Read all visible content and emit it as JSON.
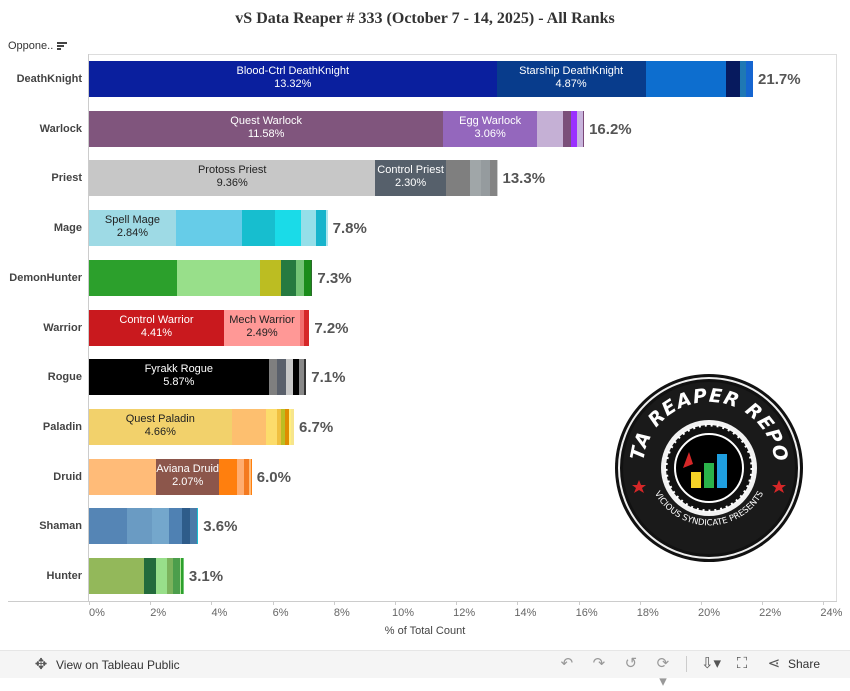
{
  "header": {
    "title": "vS Data Reaper # 333 (October 7 - 14, 2025) - All Ranks",
    "column_header": "Oppone..",
    "sort_icon": "sort-descending-icon"
  },
  "chart_data": {
    "type": "bar",
    "orientation": "horizontal-stacked",
    "title": "vS Data Reaper # 333 (October 7 - 14, 2025) - All Ranks",
    "xlabel": "% of Total Count",
    "ylabel": "Opponent Class",
    "xlim": [
      0,
      24
    ],
    "x_ticks": [
      "0%",
      "2%",
      "4%",
      "6%",
      "8%",
      "10%",
      "12%",
      "14%",
      "16%",
      "18%",
      "20%",
      "22%",
      "24%"
    ],
    "grid": false,
    "categories": [
      "DeathKnight",
      "Warlock",
      "Priest",
      "Mage",
      "DemonHunter",
      "Warrior",
      "Rogue",
      "Paladin",
      "Druid",
      "Shaman",
      "Hunter"
    ],
    "totals": [
      21.7,
      16.2,
      13.3,
      7.8,
      7.3,
      7.2,
      7.1,
      6.7,
      6.0,
      3.6,
      3.1
    ],
    "total_labels": [
      "21.7%",
      "16.2%",
      "13.3%",
      "7.8%",
      "7.3%",
      "7.2%",
      "7.1%",
      "6.7%",
      "6.0%",
      "3.6%",
      "3.1%"
    ],
    "rows": [
      {
        "class": "DeathKnight",
        "total": "21.7%",
        "segments": [
          {
            "name": "Blood-Ctrl DeathKnight",
            "value": 13.32,
            "label": "13.32%",
            "color": "#0a1f9e",
            "text": "#ffffff"
          },
          {
            "name": "Starship DeathKnight",
            "value": 4.87,
            "label": "4.87%",
            "color": "#083c8c",
            "text": "#ffffff"
          },
          {
            "name": "",
            "value": 2.62,
            "color": "#0d6ecf"
          },
          {
            "name": "",
            "value": 0.45,
            "color": "#071a5e"
          },
          {
            "name": "",
            "value": 0.22,
            "color": "#1f78b4"
          },
          {
            "name": "",
            "value": 0.22,
            "color": "#1565d0"
          }
        ]
      },
      {
        "class": "Warlock",
        "total": "16.2%",
        "segments": [
          {
            "name": "Quest Warlock",
            "value": 11.58,
            "label": "11.58%",
            "color": "#80557d",
            "text": "#ffffff"
          },
          {
            "name": "Egg Warlock",
            "value": 3.06,
            "label": "3.06%",
            "color": "#9467bd",
            "text": "#ffffff"
          },
          {
            "name": "",
            "value": 0.85,
            "color": "#c5b0d5"
          },
          {
            "name": "",
            "value": 0.25,
            "color": "#7b4f7a"
          },
          {
            "name": "",
            "value": 0.22,
            "color": "#9b30ff"
          },
          {
            "name": "",
            "value": 0.17,
            "color": "#c8b4dc"
          },
          {
            "name": "",
            "value": 0.05,
            "color": "#7a4878"
          }
        ]
      },
      {
        "class": "Priest",
        "total": "13.3%",
        "segments": [
          {
            "name": "Protoss Priest",
            "value": 9.36,
            "label": "9.36%",
            "color": "#c7c7c7",
            "text": "#222222"
          },
          {
            "name": "Control Priest",
            "value": 2.3,
            "label": "2.30%",
            "color": "#56606b",
            "text": "#ffffff"
          },
          {
            "name": "",
            "value": 0.79,
            "color": "#7f7f7f"
          },
          {
            "name": "",
            "value": 0.35,
            "color": "#a0a6a8"
          },
          {
            "name": "",
            "value": 0.32,
            "color": "#959b9e"
          },
          {
            "name": "",
            "value": 0.2,
            "color": "#848484"
          },
          {
            "name": "",
            "value": 0.03,
            "color": "#cccccc"
          }
        ]
      },
      {
        "class": "Mage",
        "total": "7.8%",
        "segments": [
          {
            "name": "Spell Mage",
            "value": 2.84,
            "label": "2.84%",
            "color": "#9edae5",
            "text": "#222222"
          },
          {
            "name": "",
            "value": 2.15,
            "color": "#66cce8"
          },
          {
            "name": "",
            "value": 1.1,
            "color": "#17becf"
          },
          {
            "name": "",
            "value": 0.85,
            "color": "#1adbe8"
          },
          {
            "name": "",
            "value": 0.48,
            "color": "#95dfe9"
          },
          {
            "name": "",
            "value": 0.33,
            "color": "#17b4cc"
          },
          {
            "name": "",
            "value": 0.05,
            "color": "#aee6ee"
          }
        ]
      },
      {
        "class": "DemonHunter",
        "total": "7.3%",
        "segments": [
          {
            "name": "",
            "value": 2.88,
            "color": "#2ca02c"
          },
          {
            "name": "",
            "value": 2.7,
            "color": "#98df8a"
          },
          {
            "name": "",
            "value": 0.68,
            "color": "#bcbd22"
          },
          {
            "name": "",
            "value": 0.52,
            "color": "#267a40"
          },
          {
            "name": "",
            "value": 0.26,
            "color": "#74c476"
          },
          {
            "name": "",
            "value": 0.2,
            "color": "#1a8c1a"
          },
          {
            "name": "",
            "value": 0.06,
            "color": "#2b6b2b"
          }
        ]
      },
      {
        "class": "Warrior",
        "total": "7.2%",
        "segments": [
          {
            "name": "Control Warrior",
            "value": 4.41,
            "label": "4.41%",
            "color": "#c9191e",
            "text": "#ffffff"
          },
          {
            "name": "Mech Warrior",
            "value": 2.49,
            "label": "2.49%",
            "color": "#ff9896",
            "text": "#222222"
          },
          {
            "name": "",
            "value": 0.14,
            "color": "#f26d6d"
          },
          {
            "name": "",
            "value": 0.16,
            "color": "#d62728"
          }
        ]
      },
      {
        "class": "Rogue",
        "total": "7.1%",
        "segments": [
          {
            "name": "Fyrakk Rogue",
            "value": 5.87,
            "label": "5.87%",
            "color": "#000000",
            "text": "#ffffff"
          },
          {
            "name": "",
            "value": 0.28,
            "color": "#7f7f7f"
          },
          {
            "name": "",
            "value": 0.3,
            "color": "#5a606b"
          },
          {
            "name": "",
            "value": 0.22,
            "color": "#c7c7c7"
          },
          {
            "name": "",
            "value": 0.2,
            "color": "#000000"
          },
          {
            "name": "",
            "value": 0.15,
            "color": "#888888"
          },
          {
            "name": "",
            "value": 0.08,
            "color": "#333333"
          }
        ]
      },
      {
        "class": "Paladin",
        "total": "6.7%",
        "segments": [
          {
            "name": "Quest Paladin",
            "value": 4.66,
            "label": "4.66%",
            "color": "#f2d16b",
            "text": "#222222"
          },
          {
            "name": "",
            "value": 1.13,
            "color": "#fdbf6f"
          },
          {
            "name": "",
            "value": 0.36,
            "color": "#fcdc6b"
          },
          {
            "name": "",
            "value": 0.13,
            "color": "#f0c040"
          },
          {
            "name": "",
            "value": 0.13,
            "color": "#bcbd22"
          },
          {
            "name": "",
            "value": 0.13,
            "color": "#e08c00"
          },
          {
            "name": "",
            "value": 0.06,
            "color": "#ffef80"
          },
          {
            "name": "",
            "value": 0.1,
            "color": "#f7e58c"
          }
        ]
      },
      {
        "class": "Druid",
        "total": "6.0%",
        "segments": [
          {
            "name": "",
            "value": 2.19,
            "color": "#ffbb78"
          },
          {
            "name": "Aviana Druid",
            "value": 2.07,
            "label": "2.07%",
            "color": "#8c564b",
            "text": "#ffffff"
          },
          {
            "name": "",
            "value": 0.59,
            "color": "#ff7f0e"
          },
          {
            "name": "",
            "value": 0.22,
            "color": "#ffad70"
          },
          {
            "name": "",
            "value": 0.17,
            "color": "#f47a20"
          },
          {
            "name": "",
            "value": 0.05,
            "color": "#ffbb78"
          },
          {
            "name": "",
            "value": 0.03,
            "color": "#ff7f0e"
          }
        ]
      },
      {
        "class": "Shaman",
        "total": "3.6%",
        "segments": [
          {
            "name": "",
            "value": 1.24,
            "color": "#5585b5"
          },
          {
            "name": "",
            "value": 0.82,
            "color": "#6a9bc3"
          },
          {
            "name": "",
            "value": 0.55,
            "color": "#74a7cc"
          },
          {
            "name": "",
            "value": 0.42,
            "color": "#4f81b3"
          },
          {
            "name": "",
            "value": 0.27,
            "color": "#2e5c8a"
          },
          {
            "name": "",
            "value": 0.24,
            "color": "#4a7aa8"
          },
          {
            "name": "",
            "value": 0.03,
            "color": "#17becf"
          }
        ]
      },
      {
        "class": "Hunter",
        "total": "3.1%",
        "segments": [
          {
            "name": "",
            "value": 1.8,
            "color": "#93b85a"
          },
          {
            "name": "",
            "value": 0.39,
            "color": "#236b3c"
          },
          {
            "name": "",
            "value": 0.35,
            "color": "#98df8a"
          },
          {
            "name": "",
            "value": 0.22,
            "color": "#7bb35c"
          },
          {
            "name": "",
            "value": 0.2,
            "color": "#4c9e4c"
          },
          {
            "name": "",
            "value": 0.06,
            "color": "#b5e6a0"
          },
          {
            "name": "",
            "value": 0.04,
            "color": "#2ca02c"
          },
          {
            "name": "",
            "value": 0.04,
            "color": "#74c476"
          }
        ]
      }
    ]
  },
  "logo": {
    "top_text": "DATA REAPER REPORT",
    "bottom_text": "VICIOUS SYNDICATE PRESENTS"
  },
  "toolbar": {
    "view_label": "View on Tableau Public",
    "share_label": "Share",
    "icons": [
      "tableau-icon",
      "undo-icon",
      "redo-icon",
      "revert-icon",
      "refresh-icon",
      "download-icon",
      "fullscreen-icon",
      "share-icon"
    ]
  }
}
